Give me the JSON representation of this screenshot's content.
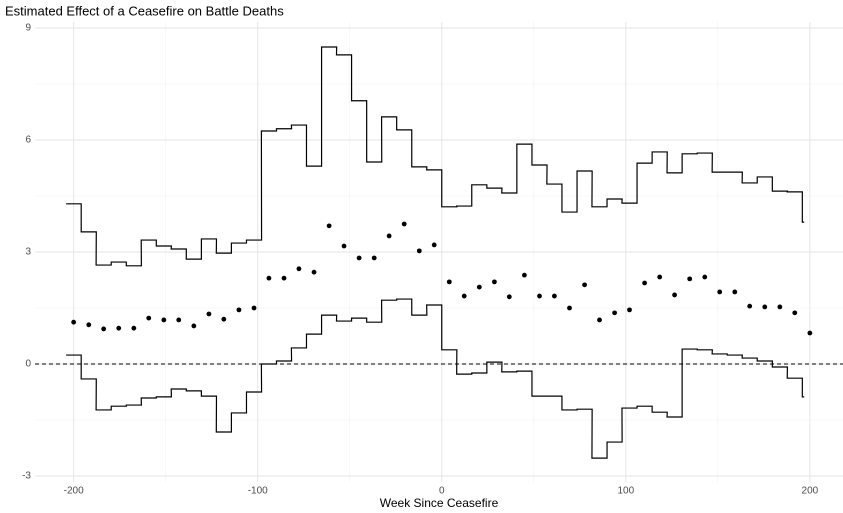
{
  "chart_data": {
    "type": "scatter",
    "title": "Estimated Effect of a Ceasefire on Battle Deaths",
    "x_label": "Week Since Ceasefire",
    "x": [
      -200,
      -191.8,
      -183.7,
      -175.5,
      -167.3,
      -159.2,
      -151.0,
      -142.9,
      -134.7,
      -126.5,
      -118.4,
      -110.2,
      -102.0,
      -93.9,
      -85.7,
      -77.6,
      -69.4,
      -61.2,
      -53.1,
      -44.9,
      -36.7,
      -28.6,
      -20.4,
      -12.2,
      -4.1,
      4.1,
      12.2,
      20.4,
      28.6,
      36.7,
      44.9,
      53.1,
      61.2,
      69.4,
      77.6,
      85.7,
      93.9,
      102.0,
      110.2,
      118.4,
      126.5,
      134.7,
      142.9,
      151.0,
      159.2,
      167.3,
      175.5,
      183.7,
      191.8,
      200
    ],
    "series": [
      {
        "type": "scatter",
        "color": "#000000",
        "values": [
          1.12,
          1.05,
          0.94,
          0.96,
          0.96,
          1.23,
          1.18,
          1.18,
          1.02,
          1.34,
          1.2,
          1.45,
          1.5,
          2.3,
          2.3,
          2.55,
          2.46,
          3.7,
          3.16,
          2.84,
          2.84,
          3.43,
          3.75,
          3.03,
          3.19,
          2.2,
          1.82,
          2.06,
          2.2,
          1.8,
          2.38,
          1.82,
          1.82,
          1.5,
          2.12,
          1.18,
          1.37,
          1.45,
          2.17,
          2.33,
          1.85,
          2.28,
          2.33,
          1.93,
          1.93,
          1.55,
          1.53,
          1.53,
          1.37,
          0.83
        ]
      },
      {
        "type": "step",
        "color": "#000000",
        "values": [
          4.29,
          3.54,
          2.65,
          2.73,
          2.63,
          3.32,
          3.16,
          3.08,
          2.81,
          3.35,
          2.97,
          3.24,
          3.32,
          6.24,
          6.3,
          6.4,
          5.3,
          8.49,
          8.28,
          7.05,
          5.41,
          6.62,
          6.27,
          5.28,
          5.2,
          4.21,
          4.23,
          4.8,
          4.71,
          4.58,
          5.89,
          5.33,
          4.82,
          4.07,
          5.17,
          4.21,
          4.42,
          4.31,
          5.38,
          5.68,
          5.12,
          5.63,
          5.65,
          5.14,
          5.14,
          4.85,
          5.01,
          4.63,
          4.61,
          3.8
        ]
      },
      {
        "type": "step",
        "color": "#000000",
        "values": [
          0.24,
          -0.4,
          -1.23,
          -1.13,
          -1.1,
          -0.91,
          -0.88,
          -0.67,
          -0.72,
          -0.86,
          -1.82,
          -1.31,
          -0.75,
          0,
          0.08,
          0.43,
          0.8,
          1.31,
          1.15,
          1.23,
          1.12,
          1.71,
          1.74,
          1.31,
          1.58,
          0.38,
          -0.27,
          -0.24,
          0.05,
          -0.21,
          -0.19,
          -0.86,
          -0.86,
          -1.23,
          -1.21,
          -2.52,
          -2.09,
          -1.18,
          -1.13,
          -1.29,
          -1.42,
          0.4,
          0.38,
          0.27,
          0.24,
          0.16,
          0.08,
          -0.08,
          -0.38,
          -0.88
        ]
      }
    ],
    "hline": {
      "value": 0,
      "style": "dashed"
    },
    "xlim": [
      -221,
      218
    ],
    "xticks": [
      -200,
      -100,
      0,
      100,
      200
    ],
    "ylim": [
      -3.16,
      9.16
    ],
    "yticks": [
      -3,
      0,
      3,
      6,
      9
    ],
    "grid": true
  }
}
